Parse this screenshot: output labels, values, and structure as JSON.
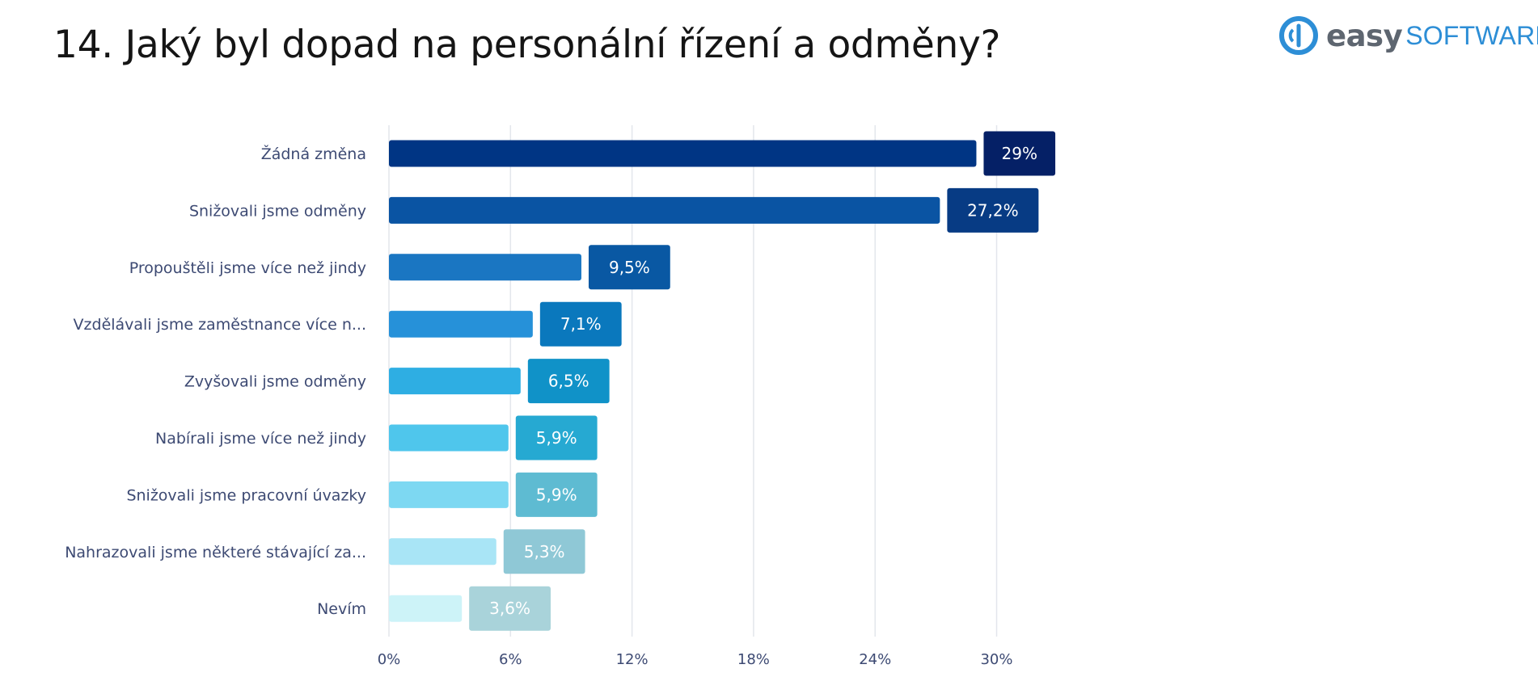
{
  "page": {
    "title": "14. Jaký byl dopad na personální řízení a odměny?"
  },
  "logo": {
    "easy": "easy",
    "software": "SOFTWARE"
  },
  "chart_data": {
    "type": "bar",
    "orientation": "horizontal",
    "title": "14. Jaký byl dopad na personální řízení a odměny?",
    "xlabel": "",
    "ylabel": "",
    "xlim": [
      0,
      30
    ],
    "x_ticks": [
      "0%",
      "6%",
      "12%",
      "18%",
      "24%",
      "30%"
    ],
    "grid": true,
    "categories": [
      "Žádná změna",
      "Snižovali jsme odměny",
      "Propouštěli jsme více než jindy",
      "Vzdělávali jsme zaměstnance více n...",
      "Zvyšovali jsme odměny",
      "Nabírali jsme více než jindy",
      "Snižovali jsme pracovní úvazky",
      "Nahrazovali jsme některé stávající za...",
      "Nevím"
    ],
    "values": [
      29,
      27.2,
      9.5,
      7.1,
      6.5,
      5.9,
      5.9,
      5.3,
      3.6
    ],
    "data_labels": [
      "29%",
      "27,2%",
      "9,5%",
      "7,1%",
      "6,5%",
      "5,9%",
      "5,9%",
      "5,3%",
      "3,6%"
    ],
    "bar_colors": [
      "#003584",
      "#0a54a3",
      "#1a76c2",
      "#2691d9",
      "#2eaee3",
      "#4fc6ec",
      "#7dd8f2",
      "#a9e5f6",
      "#cdf3f8"
    ],
    "label_colors": [
      "#052066",
      "#073b84",
      "#0958a3",
      "#0a78bd",
      "#1092c8",
      "#26a9d2",
      "#5ebbd2",
      "#8fc8d6",
      "#a9d3da"
    ]
  }
}
